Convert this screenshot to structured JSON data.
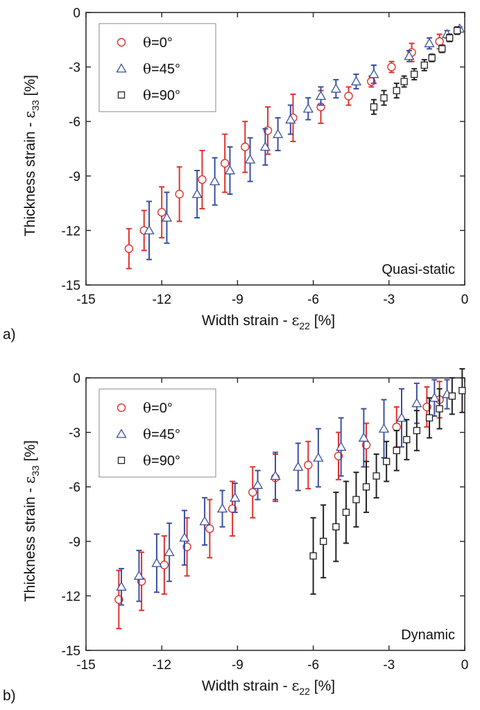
{
  "legend": {
    "theta_symbol": "θ",
    "entries": [
      {
        "key": "0",
        "label": "=0°",
        "marker": "circle",
        "color": "#e0312b"
      },
      {
        "key": "45",
        "label": "=45°",
        "marker": "triangle",
        "color": "#3a4fa0"
      },
      {
        "key": "90",
        "label": "=90°",
        "marker": "square",
        "color": "#222222"
      }
    ]
  },
  "axis_text": {
    "xlabel_prefix": "Width strain - ",
    "xlabel_symbol": "ε",
    "xlabel_sub": "22",
    "xlabel_suffix": " [%]",
    "ylabel_prefix": "Thickness strain - ",
    "ylabel_symbol": "ε",
    "ylabel_sub": "33",
    "ylabel_suffix": " [%]"
  },
  "chart_data": [
    {
      "type": "scatter",
      "panel": "a)",
      "corner_label": "Quasi-static",
      "xlim": [
        -15,
        0
      ],
      "ylim": [
        -15,
        0
      ],
      "xticks": [
        -15,
        -12,
        -9,
        -6,
        -3,
        0
      ],
      "yticks": [
        0,
        -3,
        -6,
        -9,
        -12,
        -15
      ],
      "error_bars": true,
      "series": [
        {
          "name": "θ=0°",
          "points": [
            {
              "x": -13.3,
              "y": -13.0,
              "err": 1.1
            },
            {
              "x": -12.7,
              "y": -12.0,
              "err": 1.1
            },
            {
              "x": -12.0,
              "y": -11.0,
              "err": 1.4
            },
            {
              "x": -11.3,
              "y": -10.0,
              "err": 1.5
            },
            {
              "x": -10.4,
              "y": -9.2,
              "err": 1.6
            },
            {
              "x": -9.5,
              "y": -8.3,
              "err": 1.6
            },
            {
              "x": -8.7,
              "y": -7.4,
              "err": 1.4
            },
            {
              "x": -7.8,
              "y": -6.5,
              "err": 1.3
            },
            {
              "x": -6.8,
              "y": -5.8,
              "err": 1.3
            },
            {
              "x": -5.7,
              "y": -5.2,
              "err": 0.9
            },
            {
              "x": -4.6,
              "y": -4.6,
              "err": 0.5
            },
            {
              "x": -3.7,
              "y": -3.8,
              "err": 0.3
            },
            {
              "x": -2.9,
              "y": -3.0,
              "err": 0.3
            },
            {
              "x": -2.1,
              "y": -2.2,
              "err": 0.5
            },
            {
              "x": -1.0,
              "y": -1.6,
              "err": 0.4
            }
          ]
        },
        {
          "name": "θ=45°",
          "points": [
            {
              "x": -12.5,
              "y": -12.0,
              "err": 1.6
            },
            {
              "x": -11.8,
              "y": -11.3,
              "err": 1.4
            },
            {
              "x": -10.6,
              "y": -10.0,
              "err": 1.3
            },
            {
              "x": -9.9,
              "y": -9.3,
              "err": 1.3
            },
            {
              "x": -9.3,
              "y": -8.7,
              "err": 1.3
            },
            {
              "x": -8.5,
              "y": -8.1,
              "err": 1.2
            },
            {
              "x": -7.9,
              "y": -7.4,
              "err": 1.0
            },
            {
              "x": -7.4,
              "y": -6.7,
              "err": 0.9
            },
            {
              "x": -6.9,
              "y": -5.9,
              "err": 0.8
            },
            {
              "x": -6.2,
              "y": -5.3,
              "err": 0.6
            },
            {
              "x": -5.7,
              "y": -4.6,
              "err": 0.5
            },
            {
              "x": -5.1,
              "y": -4.2,
              "err": 0.5
            },
            {
              "x": -4.3,
              "y": -3.8,
              "err": 0.4
            },
            {
              "x": -3.6,
              "y": -3.4,
              "err": 0.5
            },
            {
              "x": -2.2,
              "y": -2.4,
              "err": 0.3
            },
            {
              "x": -1.4,
              "y": -1.7,
              "err": 0.3
            },
            {
              "x": -0.7,
              "y": -1.2,
              "err": 0.2
            },
            {
              "x": -0.2,
              "y": -0.9,
              "err": 0.1
            }
          ]
        },
        {
          "name": "θ=90°",
          "points": [
            {
              "x": -3.6,
              "y": -5.2,
              "err": 0.4
            },
            {
              "x": -3.2,
              "y": -4.7,
              "err": 0.4
            },
            {
              "x": -2.7,
              "y": -4.3,
              "err": 0.4
            },
            {
              "x": -2.4,
              "y": -3.8,
              "err": 0.3
            },
            {
              "x": -2.0,
              "y": -3.4,
              "err": 0.3
            },
            {
              "x": -1.6,
              "y": -2.9,
              "err": 0.3
            },
            {
              "x": -1.3,
              "y": -2.5,
              "err": 0.2
            },
            {
              "x": -0.9,
              "y": -2.0,
              "err": 0.2
            },
            {
              "x": -0.6,
              "y": -1.4,
              "err": 0.2
            },
            {
              "x": -0.3,
              "y": -1.0,
              "err": 0.2
            }
          ]
        }
      ]
    },
    {
      "type": "scatter",
      "panel": "b)",
      "corner_label": "Dynamic",
      "xlim": [
        -15,
        0
      ],
      "ylim": [
        -15,
        0
      ],
      "xticks": [
        -15,
        -12,
        -9,
        -6,
        -3,
        0
      ],
      "yticks": [
        0,
        -3,
        -6,
        -9,
        -12,
        -15
      ],
      "error_bars": true,
      "series": [
        {
          "name": "θ=0°",
          "points": [
            {
              "x": -13.7,
              "y": -12.2,
              "err": 1.6
            },
            {
              "x": -12.8,
              "y": -11.2,
              "err": 1.6
            },
            {
              "x": -11.9,
              "y": -10.3,
              "err": 1.6
            },
            {
              "x": -11.0,
              "y": -9.3,
              "err": 1.6
            },
            {
              "x": -10.1,
              "y": -8.3,
              "err": 1.6
            },
            {
              "x": -9.2,
              "y": -7.2,
              "err": 1.5
            },
            {
              "x": -8.4,
              "y": -6.3,
              "err": 1.4
            },
            {
              "x": -7.5,
              "y": -5.5,
              "err": 1.3
            },
            {
              "x": -6.2,
              "y": -4.8,
              "err": 1.3
            },
            {
              "x": -5.0,
              "y": -4.3,
              "err": 1.3
            },
            {
              "x": -3.9,
              "y": -3.7,
              "err": 1.2
            },
            {
              "x": -2.7,
              "y": -2.7,
              "err": 1.1
            },
            {
              "x": -1.5,
              "y": -1.6,
              "err": 1.1
            },
            {
              "x": -1.0,
              "y": -1.2,
              "err": 1.0
            }
          ]
        },
        {
          "name": "θ=45°",
          "points": [
            {
              "x": -13.6,
              "y": -11.5,
              "err": 1.0
            },
            {
              "x": -12.9,
              "y": -10.9,
              "err": 1.4
            },
            {
              "x": -12.2,
              "y": -10.2,
              "err": 1.6
            },
            {
              "x": -11.7,
              "y": -9.6,
              "err": 1.6
            },
            {
              "x": -11.1,
              "y": -8.8,
              "err": 1.5
            },
            {
              "x": -10.3,
              "y": -7.9,
              "err": 1.3
            },
            {
              "x": -9.6,
              "y": -7.2,
              "err": 1.0
            },
            {
              "x": -9.1,
              "y": -6.6,
              "err": 0.8
            },
            {
              "x": -8.2,
              "y": -5.9,
              "err": 0.8
            },
            {
              "x": -7.5,
              "y": -5.4,
              "err": 1.3
            },
            {
              "x": -6.6,
              "y": -4.9,
              "err": 1.3
            },
            {
              "x": -5.8,
              "y": -4.4,
              "err": 1.6
            },
            {
              "x": -4.9,
              "y": -3.8,
              "err": 1.6
            },
            {
              "x": -4.0,
              "y": -3.3,
              "err": 1.6
            },
            {
              "x": -3.2,
              "y": -2.8,
              "err": 1.6
            },
            {
              "x": -2.5,
              "y": -2.2,
              "err": 1.6
            },
            {
              "x": -1.9,
              "y": -1.4,
              "err": 1.1
            },
            {
              "x": -1.2,
              "y": -1.1,
              "err": 1.0
            },
            {
              "x": -0.7,
              "y": -0.9,
              "err": 0.8
            }
          ]
        },
        {
          "name": "θ=90°",
          "points": [
            {
              "x": -6.0,
              "y": -9.8,
              "err": 2.1
            },
            {
              "x": -5.6,
              "y": -9.0,
              "err": 2.0
            },
            {
              "x": -5.1,
              "y": -8.2,
              "err": 1.9
            },
            {
              "x": -4.7,
              "y": -7.4,
              "err": 1.7
            },
            {
              "x": -4.3,
              "y": -6.7,
              "err": 1.5
            },
            {
              "x": -3.9,
              "y": -6.0,
              "err": 1.4
            },
            {
              "x": -3.5,
              "y": -5.4,
              "err": 1.2
            },
            {
              "x": -3.1,
              "y": -4.6,
              "err": 1.1
            },
            {
              "x": -2.7,
              "y": -4.0,
              "err": 1.1
            },
            {
              "x": -2.3,
              "y": -3.4,
              "err": 1.1
            },
            {
              "x": -1.9,
              "y": -2.9,
              "err": 1.1
            },
            {
              "x": -1.4,
              "y": -2.2,
              "err": 1.1
            },
            {
              "x": -1.0,
              "y": -1.7,
              "err": 1.1
            },
            {
              "x": -0.5,
              "y": -1.0,
              "err": 1.0
            },
            {
              "x": -0.1,
              "y": -0.7,
              "err": 1.2
            }
          ]
        }
      ]
    }
  ]
}
